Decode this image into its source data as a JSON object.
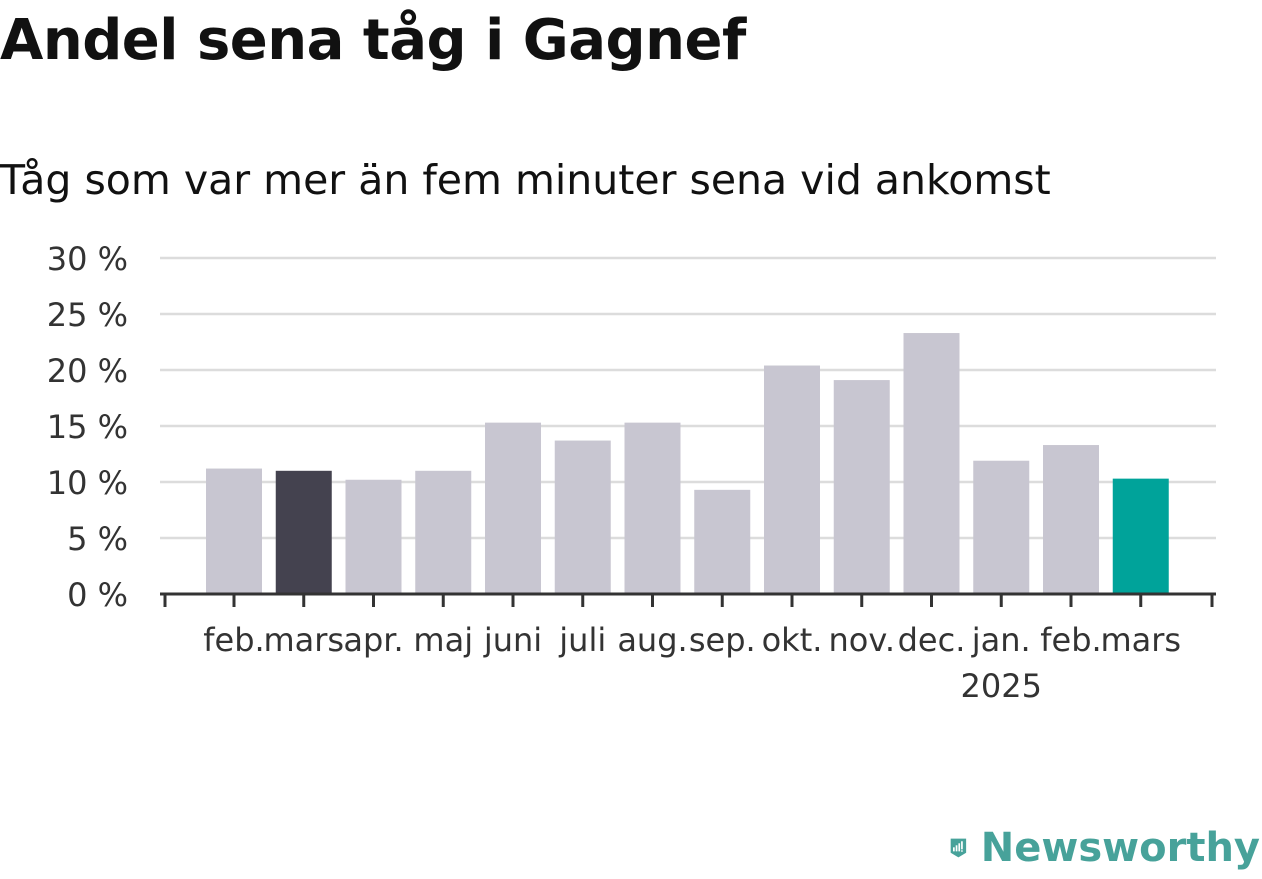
{
  "title": "Andel sena tåg i Gagnef",
  "subtitle": "Tåg som var mer än fem minuter sena vid ankomst",
  "brand": {
    "name": "Newsworthy",
    "icon": "newsworthy-logo-icon",
    "color": "#47a29a"
  },
  "chart_data": {
    "type": "bar",
    "categories": [
      "feb.",
      "mars",
      "apr.",
      "maj",
      "juni",
      "juli",
      "aug.",
      "sep.",
      "okt.",
      "nov.",
      "dec.",
      "jan.",
      "feb.",
      "mars"
    ],
    "year_labels": [
      {
        "index": 11,
        "label": "2025"
      }
    ],
    "values": [
      11.2,
      11.0,
      10.2,
      11.0,
      15.3,
      13.7,
      15.3,
      9.3,
      20.4,
      19.1,
      23.3,
      11.9,
      13.3,
      10.3
    ],
    "highlight": {
      "1": "#44424f",
      "13": "#00a39a"
    },
    "bar_color": "#c8c6d1",
    "ylim": [
      0,
      30
    ],
    "yticks": [
      0,
      5,
      10,
      15,
      20,
      25,
      30
    ],
    "ytick_suffix": " %",
    "grid": true,
    "xlabel": "",
    "ylabel": ""
  }
}
